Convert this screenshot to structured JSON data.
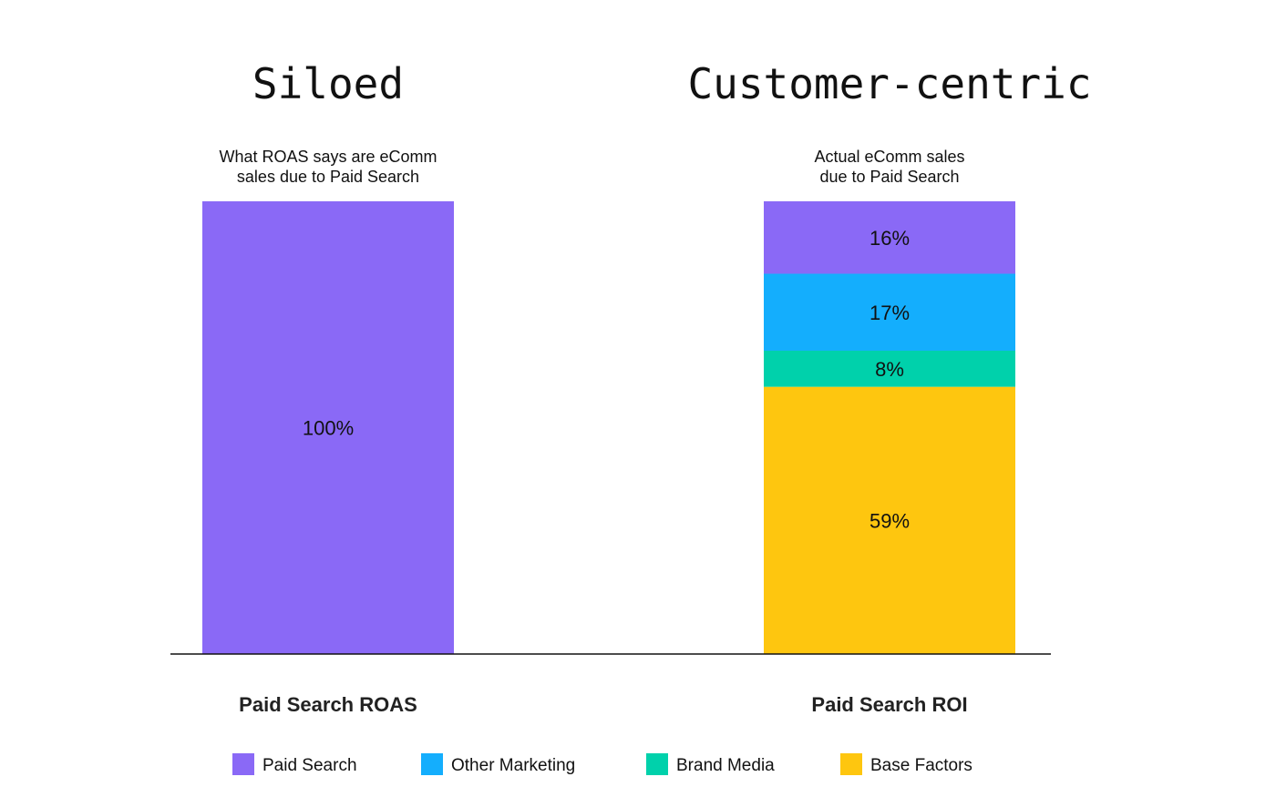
{
  "chart_data": {
    "type": "bar",
    "stacked": true,
    "panels": [
      {
        "title": "Siloed",
        "subtitle": [
          "What ROAS says are eComm",
          "sales due to Paid Search"
        ],
        "category": "Paid Search ROAS",
        "segments": [
          {
            "series": "Paid Search",
            "value": 100,
            "label": "100%"
          }
        ]
      },
      {
        "title": "Customer-centric",
        "subtitle": [
          "Actual eComm sales",
          "due to Paid Search"
        ],
        "category": "Paid Search ROI",
        "segments": [
          {
            "series": "Paid Search",
            "value": 16,
            "label": "16%"
          },
          {
            "series": "Other Marketing",
            "value": 17,
            "label": "17%"
          },
          {
            "series": "Brand Media",
            "value": 8,
            "label": "8%"
          },
          {
            "series": "Base Factors",
            "value": 59,
            "label": "59%"
          }
        ]
      }
    ],
    "legend": [
      {
        "name": "Paid Search",
        "color": "#8a69f6"
      },
      {
        "name": "Other Marketing",
        "color": "#14aefd"
      },
      {
        "name": "Brand Media",
        "color": "#00d1ab"
      },
      {
        "name": "Base Factors",
        "color": "#fec60f"
      }
    ],
    "ylim": [
      0,
      100
    ],
    "grid": false,
    "legend_position": "bottom"
  }
}
